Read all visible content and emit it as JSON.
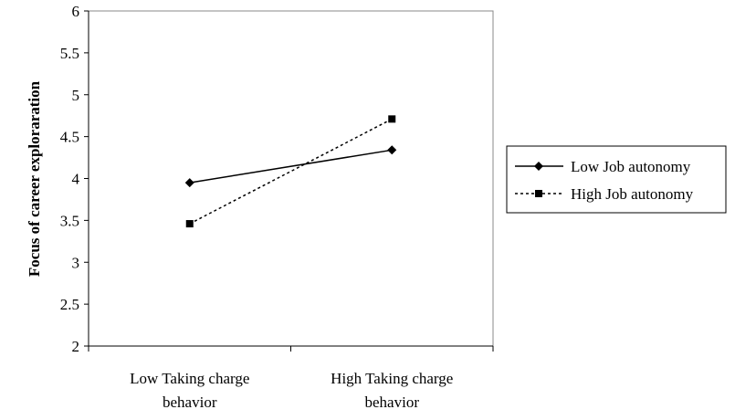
{
  "chart_data": {
    "type": "line",
    "title": "",
    "xlabel": "",
    "ylabel": "Focus of career exploraration",
    "ylim": [
      2,
      6
    ],
    "yticks": [
      "2",
      "2.5",
      "3",
      "3.5",
      "4",
      "4.5",
      "5",
      "5.5",
      "6"
    ],
    "categories": [
      [
        "Low Taking charge",
        "behavior"
      ],
      [
        "High Taking charge",
        "behavior"
      ]
    ],
    "grid": false,
    "legend": "right",
    "series": [
      {
        "name": "Low Job autonomy",
        "values": [
          3.95,
          4.34
        ],
        "marker": "diamond",
        "dash": "solid",
        "color": "#000000"
      },
      {
        "name": "High Job autonomy",
        "values": [
          3.46,
          4.71
        ],
        "marker": "square",
        "dash": "dotted",
        "color": "#000000"
      }
    ]
  }
}
